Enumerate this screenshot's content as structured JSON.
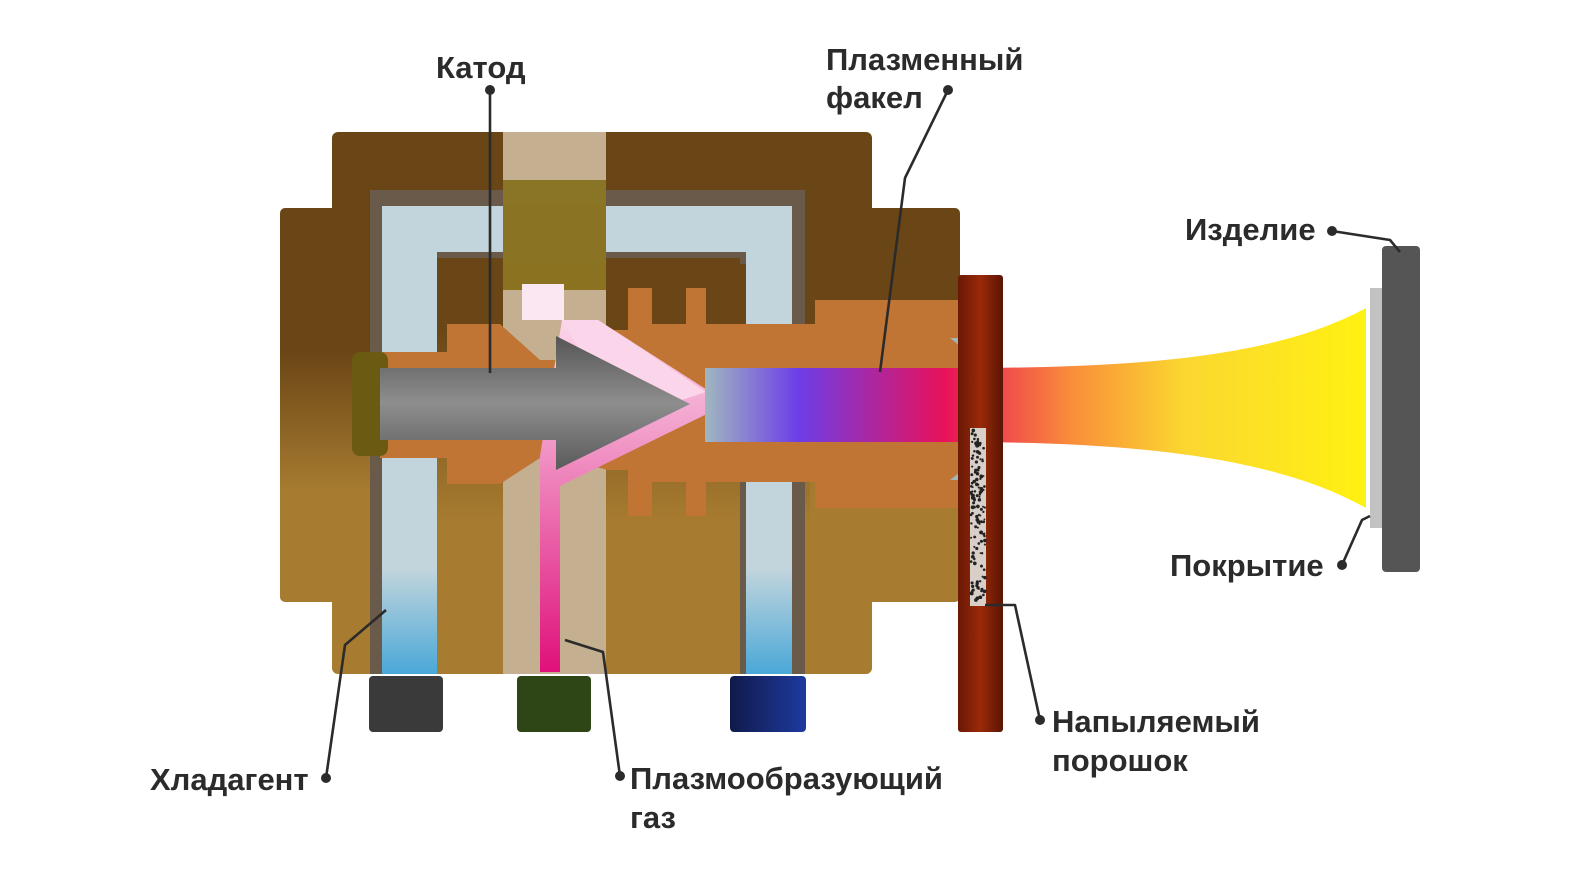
{
  "labels": {
    "cathode": "Катод",
    "torch_line1": "Плазменный",
    "torch_line2": "факел",
    "workpiece": "Изделие",
    "coating": "Покрытие",
    "powder_line1": "Напыляемый",
    "powder_line2": "порошок",
    "gas_line1": "Плазмообразующий",
    "gas_line2": "газ",
    "coolant": "Хладагент"
  },
  "colors": {
    "housing_dark": "#6a4515",
    "housing_light": "#a77c31",
    "coolant_light": "#c2d5dc",
    "coolant_blue": "#55acd4",
    "anode_copper": "#c07535",
    "cathode_grey": "#747474",
    "gas_pink": "#e0107a",
    "plasma_purple": "#6f3ee6",
    "plasma_red": "#e8125a",
    "plasma_yellow": "#ffee10",
    "workpiece": "#555555",
    "coating": "#c2c2c2",
    "powder_feeder": "#7a1a06",
    "label_text": "#2b2b2b"
  }
}
